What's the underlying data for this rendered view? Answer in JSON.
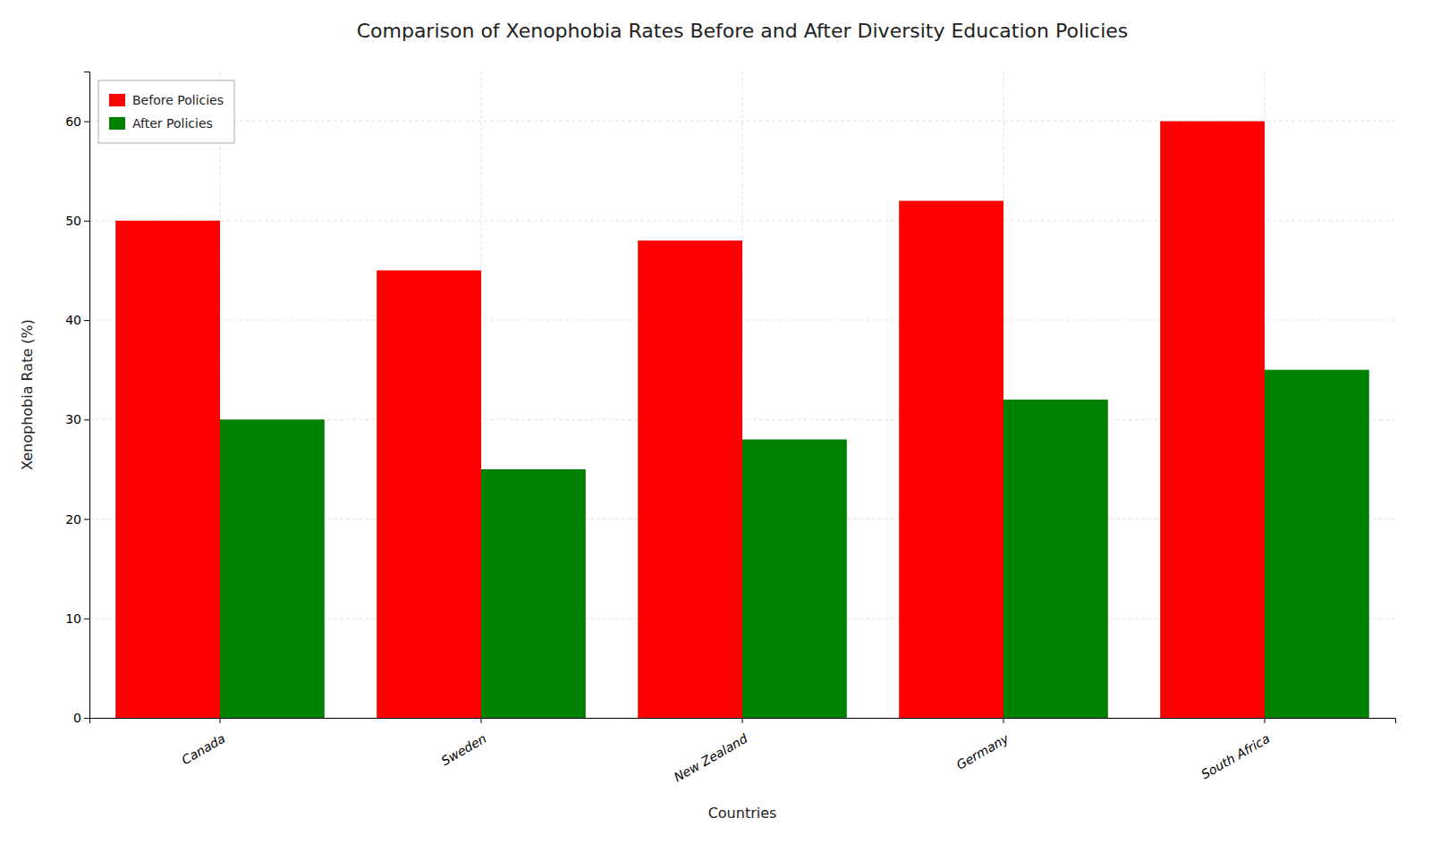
{
  "chart_data": {
    "type": "bar",
    "title": "Comparison of Xenophobia Rates Before and After Diversity Education Policies",
    "xlabel": "Countries",
    "ylabel": "Xenophobia Rate (%)",
    "categories": [
      "Canada",
      "Sweden",
      "New Zealand",
      "Germany",
      "South Africa"
    ],
    "series": [
      {
        "name": "Before Policies",
        "color": "#ff0000",
        "values": [
          50,
          45,
          48,
          52,
          60
        ]
      },
      {
        "name": "After Policies",
        "color": "#008000",
        "values": [
          30,
          25,
          28,
          32,
          35
        ]
      }
    ],
    "ylim": [
      0,
      65
    ],
    "yticks": [
      0,
      10,
      20,
      30,
      40,
      50,
      60
    ],
    "grid": true,
    "legend": "upper left"
  }
}
